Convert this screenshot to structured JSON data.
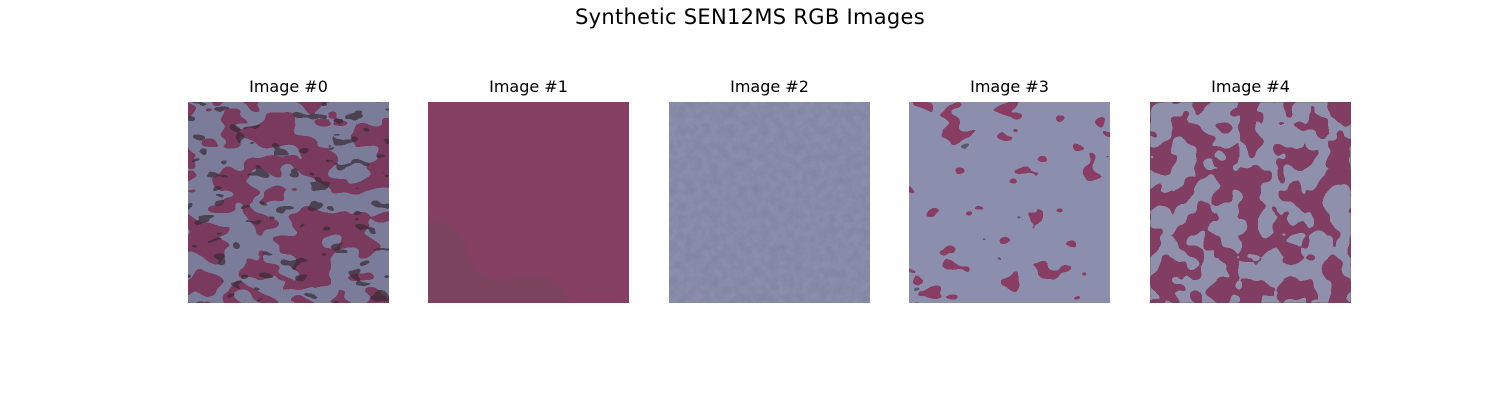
{
  "figure": {
    "title": "Synthetic SEN12MS RGB Images"
  },
  "images": [
    {
      "title": "Image #0",
      "base_color": "#7a3a5e",
      "blob_color": "#7a7c9a",
      "dark_color": "#3a2a34"
    },
    {
      "title": "Image #1",
      "base_color": "#843f62",
      "blob_color": "#7e6a78",
      "dark_color": "#6b4a55"
    },
    {
      "title": "Image #2",
      "base_color": "#8e93b2",
      "blob_color": "#8a3e64",
      "dark_color": "#5e6278"
    },
    {
      "title": "Image #3",
      "base_color": "#8b8fad",
      "blob_color": "#8a3d63",
      "dark_color": "#3b3540"
    },
    {
      "title": "Image #4",
      "base_color": "#823e62",
      "blob_color": "#8e90ac",
      "dark_color": "#5c4454"
    }
  ]
}
